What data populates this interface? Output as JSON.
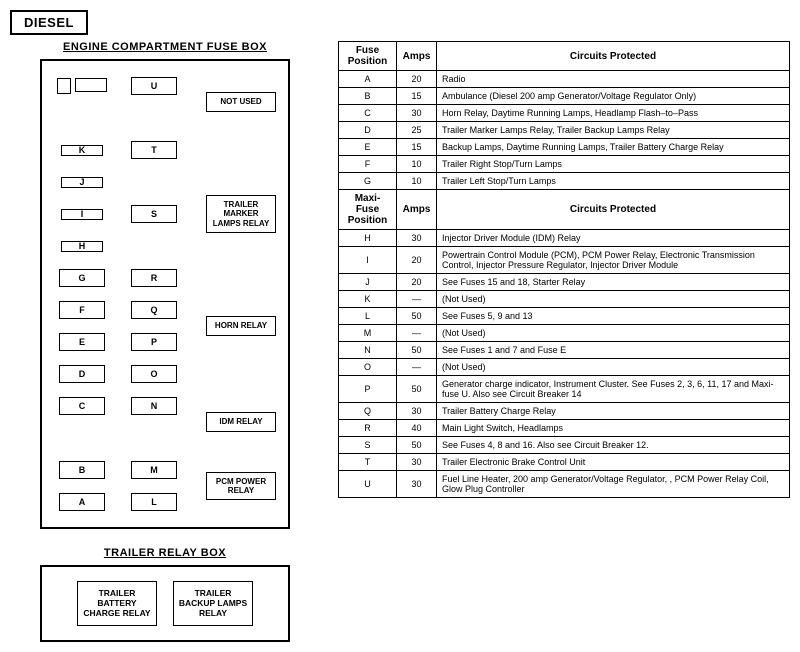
{
  "header_label": "DIESEL",
  "engine_box": {
    "title": "ENGINE COMPARTMENT FUSE BOX",
    "left_column": [
      "K",
      "J",
      "I",
      "H",
      "G",
      "F",
      "E",
      "D",
      "C",
      "B",
      "A"
    ],
    "mid_column": [
      "U",
      "T",
      "S",
      "R",
      "Q",
      "P",
      "O",
      "N",
      "M",
      "L"
    ],
    "relays": [
      {
        "label": "NOT USED"
      },
      {
        "label": "TRAILER MARKER LAMPS RELAY"
      },
      {
        "label": "HORN RELAY"
      },
      {
        "label": "IDM RELAY"
      },
      {
        "label": "PCM POWER RELAY"
      }
    ]
  },
  "trailer_box": {
    "title": "TRAILER RELAY BOX",
    "relays": [
      "TRAILER BATTERY CHARGE RELAY",
      "TRAILER BACKUP LAMPS RELAY"
    ]
  },
  "table": {
    "hdr1": [
      "Fuse Position",
      "Amps",
      "Circuits Protected"
    ],
    "hdr2": [
      "Maxi-Fuse Position",
      "Amps",
      "Circuits Protected"
    ],
    "fuses": [
      {
        "p": "A",
        "a": "20",
        "c": "Radio"
      },
      {
        "p": "B",
        "a": "15",
        "c": "Ambulance (Diesel 200 amp Generator/Voltage Regulator Only)"
      },
      {
        "p": "C",
        "a": "30",
        "c": "Horn Relay, Daytime Running Lamps, Headlamp Flash–to–Pass"
      },
      {
        "p": "D",
        "a": "25",
        "c": "Trailer Marker Lamps Relay, Trailer Backup Lamps Relay"
      },
      {
        "p": "E",
        "a": "15",
        "c": "Backup Lamps, Daytime Running Lamps, Trailer Battery Charge Relay"
      },
      {
        "p": "F",
        "a": "10",
        "c": "Trailer Right Stop/Turn Lamps"
      },
      {
        "p": "G",
        "a": "10",
        "c": "Trailer Left Stop/Turn Lamps"
      }
    ],
    "maxi": [
      {
        "p": "H",
        "a": "30",
        "c": "Injector Driver Module (IDM) Relay"
      },
      {
        "p": "I",
        "a": "20",
        "c": "Powertrain Control Module (PCM), PCM Power Relay, Electronic Transmission Control, Injector Pressure Regulator, Injector Driver Module"
      },
      {
        "p": "J",
        "a": "20",
        "c": "See Fuses 15 and 18, Starter Relay"
      },
      {
        "p": "K",
        "a": "—",
        "c": "(Not Used)"
      },
      {
        "p": "L",
        "a": "50",
        "c": "See Fuses 5, 9 and 13"
      },
      {
        "p": "M",
        "a": "—",
        "c": "(Not Used)"
      },
      {
        "p": "N",
        "a": "50",
        "c": "See Fuses 1 and 7 and Fuse E"
      },
      {
        "p": "O",
        "a": "—",
        "c": "(Not Used)"
      },
      {
        "p": "P",
        "a": "50",
        "c": "Generator charge indicator, Instrument Cluster. See Fuses 2, 3, 6, 11, 17 and Maxi-fuse U. Also see Circuit Breaker 14"
      },
      {
        "p": "Q",
        "a": "30",
        "c": "Trailer Battery Charge Relay"
      },
      {
        "p": "R",
        "a": "40",
        "c": "Main Light Switch, Headlamps"
      },
      {
        "p": "S",
        "a": "50",
        "c": "See Fuses 4, 8 and 16. Also see Circuit Breaker 12."
      },
      {
        "p": "T",
        "a": "30",
        "c": "Trailer Electronic Brake Control Unit"
      },
      {
        "p": "U",
        "a": "30",
        "c": "Fuel Line Heater, 200 amp Generator/Voltage Regulator, , PCM Power Relay Coil, Glow Plug Controller"
      }
    ]
  }
}
